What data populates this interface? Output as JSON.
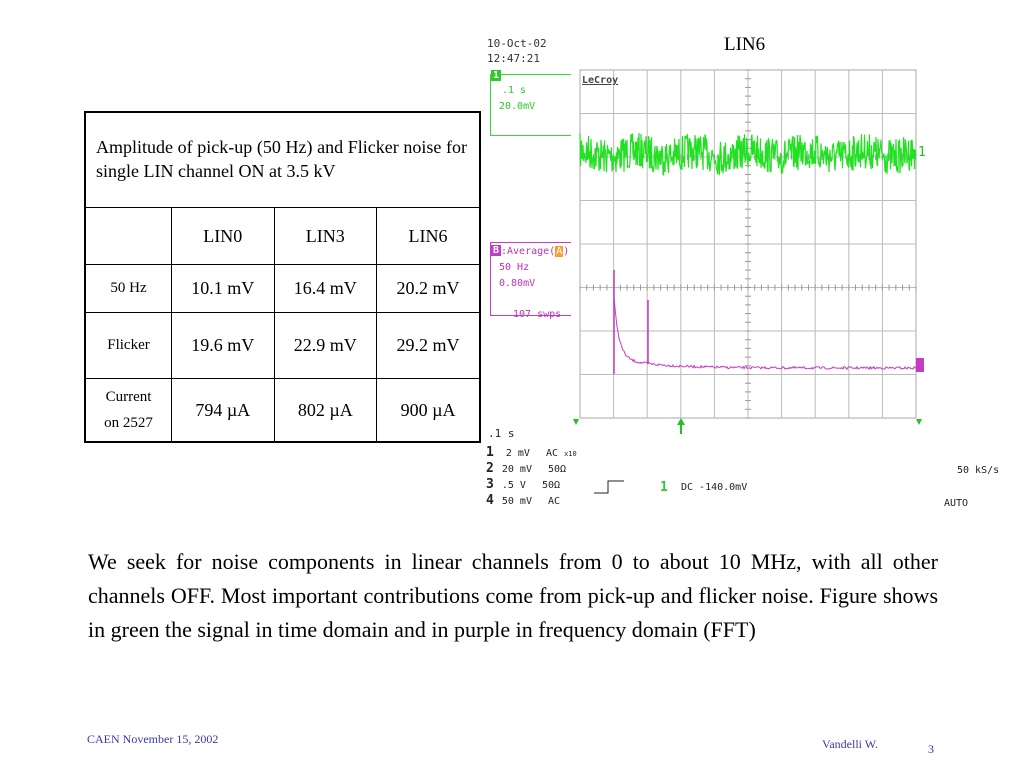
{
  "table": {
    "caption": "Amplitude of pick-up (50 Hz) and Flicker noise for single LIN channel ON at 3.5 kV",
    "columns": [
      "",
      "LIN0",
      "LIN3",
      "LIN6"
    ],
    "rows": [
      {
        "label": "50 Hz",
        "values": [
          "10.1 mV",
          "16.4 mV",
          "20.2 mV"
        ]
      },
      {
        "label": "Flicker",
        "values": [
          "19.6 mV",
          "22.9 mV",
          "29.2 mV"
        ]
      },
      {
        "label_line1": "Current",
        "label_line2": "on 2527",
        "values": [
          "794 µA",
          "802 µA",
          "900 µA"
        ]
      }
    ]
  },
  "scope": {
    "title": "LIN6",
    "date": "10-Oct-02",
    "time": "12:47:21",
    "brand": "LeCroy",
    "trace1_marker": "1",
    "trace1_timebase": ".1 s",
    "trace1_scale": "20.0mV",
    "trace2_marker": "B",
    "trace2_func": ":Average(",
    "trace2_src": "A",
    "trace2_close": ")",
    "trace2_freq": "50 Hz",
    "trace2_scale": "0.80mV",
    "trace2_sweeps": "107 swps",
    "timebase": ".1  s",
    "channels": [
      {
        "num": "1",
        "setting": "2 mV",
        "coupling": "AC",
        "extra": "x10"
      },
      {
        "num": "2",
        "setting": "20 mV",
        "coupling": "50Ω",
        "extra": ""
      },
      {
        "num": "3",
        "setting": ".5  V",
        "coupling": "50Ω",
        "extra": ""
      },
      {
        "num": "4",
        "setting": "50 mV",
        "coupling": "AC",
        "extra": ""
      }
    ],
    "trigger_channel": "1",
    "trigger_setting": "DC -140.0mV",
    "sample_rate": "50 kS/s",
    "trigger_mode": "AUTO",
    "colors": {
      "green": "#22e022",
      "purple": "#c43cc4",
      "grid": "#bbbbbb"
    }
  },
  "body": "We seek for noise components in linear channels from 0 to about 10 MHz, with all other channels OFF. Most important contributions come from pick-up and flicker noise. Figure shows in green the signal in time domain and in purple in frequency domain (FFT)",
  "footer": {
    "left": "CAEN November 15, 2002",
    "author": "Vandelli W.",
    "page": "3"
  }
}
